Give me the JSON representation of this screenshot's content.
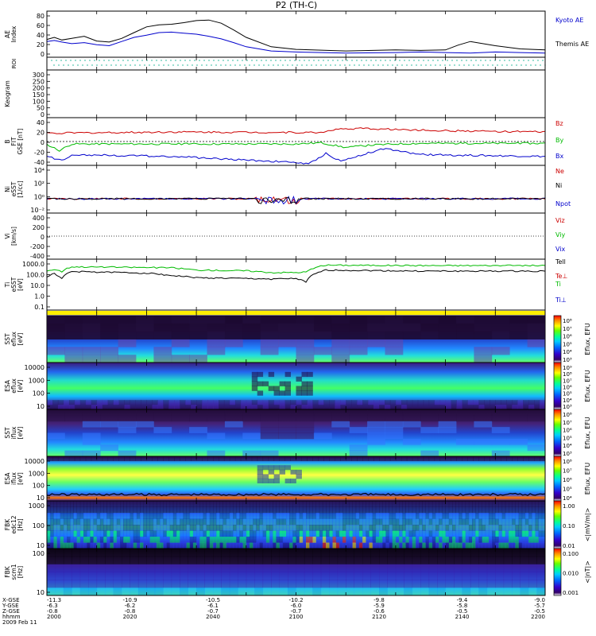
{
  "chart_data": {
    "type": "line",
    "title": "P2 (TH-C)",
    "panels": [
      {
        "id": "ae",
        "ylabel": "AE Index",
        "ytick_labels": [
          "80",
          "60",
          "40",
          "20",
          "0"
        ],
        "ylim": [
          0,
          85
        ],
        "legend": [
          {
            "label": "Kyoto AE",
            "color": "#0000cc"
          },
          {
            "label": "Themis AE",
            "color": "#000000"
          }
        ],
        "series": [
          {
            "name": "Kyoto AE",
            "color": "#0000cc",
            "x": [
              2000,
              2003,
              2006,
              2010,
              2015,
              2020,
              2025,
              2030,
              2035,
              2040,
              2045,
              2050,
              2055,
              2060,
              2065,
              2070,
              2075,
              2080,
              2090,
              2100,
              2120,
              2140,
              2150,
              2160,
              2170,
              2180,
              2190,
              2200
            ],
            "y": [
              30,
              32,
              29,
              26,
              28,
              24,
              22,
              30,
              38,
              42,
              47,
              48,
              46,
              44,
              40,
              35,
              28,
              20,
              12,
              10,
              8,
              9,
              10,
              9,
              8,
              10,
              9,
              8
            ]
          },
          {
            "name": "Themis AE",
            "color": "#000000",
            "x": [
              2000,
              2003,
              2006,
              2010,
              2015,
              2020,
              2025,
              2030,
              2035,
              2040,
              2045,
              2050,
              2055,
              2060,
              2065,
              2070,
              2075,
              2080,
              2090,
              2100,
              2120,
              2140,
              2150,
              2160,
              2165,
              2170,
              2180,
              2190,
              2200
            ],
            "y": [
              34,
              38,
              33,
              36,
              40,
              31,
              29,
              36,
              47,
              58,
              62,
              63,
              66,
              70,
              71,
              65,
              52,
              38,
              20,
              15,
              12,
              14,
              13,
              14,
              23,
              30,
              22,
              16,
              14
            ]
          }
        ]
      },
      {
        "id": "roi",
        "ylabel": "ROI"
      },
      {
        "id": "keogram",
        "ylabel": "Keogram",
        "ytick_labels": [
          "300",
          "250",
          "200",
          "150",
          "100",
          "50",
          "0"
        ]
      },
      {
        "id": "bfit",
        "ylabel": "B FIT GSE [nT]",
        "ytick_labels": [
          "40",
          "20",
          "0",
          "-20",
          "-40"
        ],
        "ylim": [
          -40,
          40
        ],
        "legend": [
          {
            "label": "Bz",
            "color": "#cc0000"
          },
          {
            "label": "By",
            "color": "#00bb00"
          },
          {
            "label": "Bx",
            "color": "#0000cc"
          }
        ],
        "series": [
          {
            "name": "Bz",
            "color": "#cc0000",
            "x": [
              2000,
              2050,
              2110,
              2115,
              2125,
              2160,
              2200
            ],
            "y": [
              14,
              16,
              15,
              20,
              22,
              18,
              16
            ]
          },
          {
            "name": "By",
            "color": "#00bb00",
            "x": [
              2000,
              2005,
              2010,
              2050,
              2100,
              2110,
              2120,
              2130,
              2140,
              2150,
              2200
            ],
            "y": [
              -5,
              -15,
              -4,
              -4,
              -4,
              -2,
              -10,
              -6,
              -4,
              -3,
              -3
            ]
          },
          {
            "name": "Bx",
            "color": "#0000cc",
            "x": [
              2000,
              2006,
              2010,
              2050,
              2100,
              2105,
              2112,
              2118,
              2125,
              2135,
              2150,
              2200
            ],
            "y": [
              -25,
              -32,
              -22,
              -25,
              -35,
              -38,
              -20,
              -33,
              -24,
              -12,
              -22,
              -25
            ]
          }
        ]
      },
      {
        "id": "ni",
        "ylabel": "Ni eSST [1/cc]",
        "ytick_labels": [
          "10⁴",
          "10²",
          "10⁰",
          "10⁻²"
        ],
        "legend": [
          {
            "label": "Ne",
            "color": "#cc0000"
          },
          {
            "label": "Ni",
            "color": "#000000"
          },
          {
            "label": "Npot",
            "color": "#0000cc"
          }
        ]
      },
      {
        "id": "vi",
        "ylabel": "Vi [km/s]",
        "ytick_labels": [
          "400",
          "200",
          "0",
          "-200",
          "-400"
        ],
        "legend": [
          {
            "label": "Viz",
            "color": "#cc0000"
          },
          {
            "label": "Viy",
            "color": "#00bb00"
          },
          {
            "label": "Vix",
            "color": "#0000cc"
          }
        ]
      },
      {
        "id": "ti",
        "ylabel": "Ti eSST [eV]",
        "ytick_labels": [
          "1000.0",
          "100.0",
          "10.0",
          "1.0",
          "0.1"
        ],
        "legend": [
          {
            "label": "Tell",
            "color": "#000000"
          },
          {
            "label": "Te⊥",
            "color": "#cc0000"
          },
          {
            "label": "Ti",
            "color": "#00bb00"
          },
          {
            "label": "Ti⊥",
            "color": "#0000cc"
          }
        ],
        "series": [
          {
            "name": "Ti",
            "color": "#00bb00",
            "x": [
              2000,
              2003,
              2006,
              2010,
              2050,
              2060,
              2080,
              2090,
              2100,
              2104,
              2108,
              2112,
              2150,
              2200
            ],
            "y": [
              600,
              800,
              500,
              1500,
              1200,
              700,
              600,
              400,
              400,
              450,
              1200,
              2200,
              2000,
              2000
            ]
          },
          {
            "name": "Tell",
            "color": "#000000",
            "x": [
              2000,
              2003,
              2006,
              2010,
              2040,
              2050,
              2060,
              2080,
              2090,
              2100,
              2104,
              2108,
              2112,
              2150,
              2200
            ],
            "y": [
              150,
              300,
              90,
              500,
              350,
              200,
              120,
              100,
              90,
              100,
              40,
              300,
              700,
              550,
              550
            ]
          }
        ]
      },
      {
        "id": "sst_e",
        "ylabel": "SST eflux [eV]",
        "colorbar_label": "Eflux, EFU",
        "colorbar_ticks": [
          "10⁸",
          "10⁷",
          "10⁶",
          "10⁵",
          "10⁴",
          "10³"
        ]
      },
      {
        "id": "esa_e",
        "ylabel": "ESA eflux [eV]",
        "ytick_labels": [
          "10000",
          "1000",
          "100",
          "10"
        ],
        "colorbar_label": "Eflux, EFU",
        "colorbar_ticks": [
          "10⁹",
          "10⁸",
          "10⁷",
          "10⁶",
          "10⁵",
          "10⁴",
          "10³"
        ]
      },
      {
        "id": "sst_i",
        "ylabel": "SST iflux [eV]",
        "colorbar_label": "Eflux, EFU",
        "colorbar_ticks": [
          "10⁸",
          "10⁷",
          "10⁶",
          "10⁵",
          "10⁴",
          "10³"
        ]
      },
      {
        "id": "esa_i",
        "ylabel": "ESA iflux [eV]",
        "ytick_labels": [
          "10000",
          "1000",
          "100",
          "10"
        ],
        "colorbar_label": "Eflux, EFU",
        "colorbar_ticks": [
          "10⁸",
          "10⁷",
          "10⁶",
          "10⁵",
          "10⁴"
        ]
      },
      {
        "id": "fbk_e",
        "ylabel": "FBK edc12 [Hz]",
        "ytick_labels": [
          "1000",
          "100",
          "10"
        ],
        "colorbar_label": "<|mV/m|>",
        "colorbar_ticks": [
          "1.00",
          "0.10",
          "0.01"
        ]
      },
      {
        "id": "fbk_b",
        "ylabel": "FBK scm1 [Hz]",
        "ytick_labels": [
          "100",
          "10"
        ],
        "colorbar_label": "<|nT|>",
        "colorbar_ticks": [
          "0.100",
          "0.010",
          "0.001"
        ]
      }
    ],
    "footer": {
      "row_labels": [
        "X-GSE",
        "Y-GSE",
        "Z-GSE",
        "hhmm",
        "2009 Feb 11"
      ],
      "columns": [
        {
          "x": "-11.3",
          "y": "-6.3",
          "z": "-0.8",
          "hhmm": "2000"
        },
        {
          "x": "-10.9",
          "y": "-6.2",
          "z": "-0.8",
          "hhmm": "2020"
        },
        {
          "x": "-10.5",
          "y": "-6.1",
          "z": "-0.7",
          "hhmm": "2040"
        },
        {
          "x": "-10.2",
          "y": "-6.0",
          "z": "-0.7",
          "hhmm": "2100"
        },
        {
          "x": "-9.8",
          "y": "-5.9",
          "z": "-0.6",
          "hhmm": "2120"
        },
        {
          "x": "-9.4",
          "y": "-5.8",
          "z": "-0.5",
          "hhmm": "2140"
        },
        {
          "x": "-9.0",
          "y": "-5.7",
          "z": "-0.5",
          "hhmm": "2200"
        }
      ]
    }
  }
}
